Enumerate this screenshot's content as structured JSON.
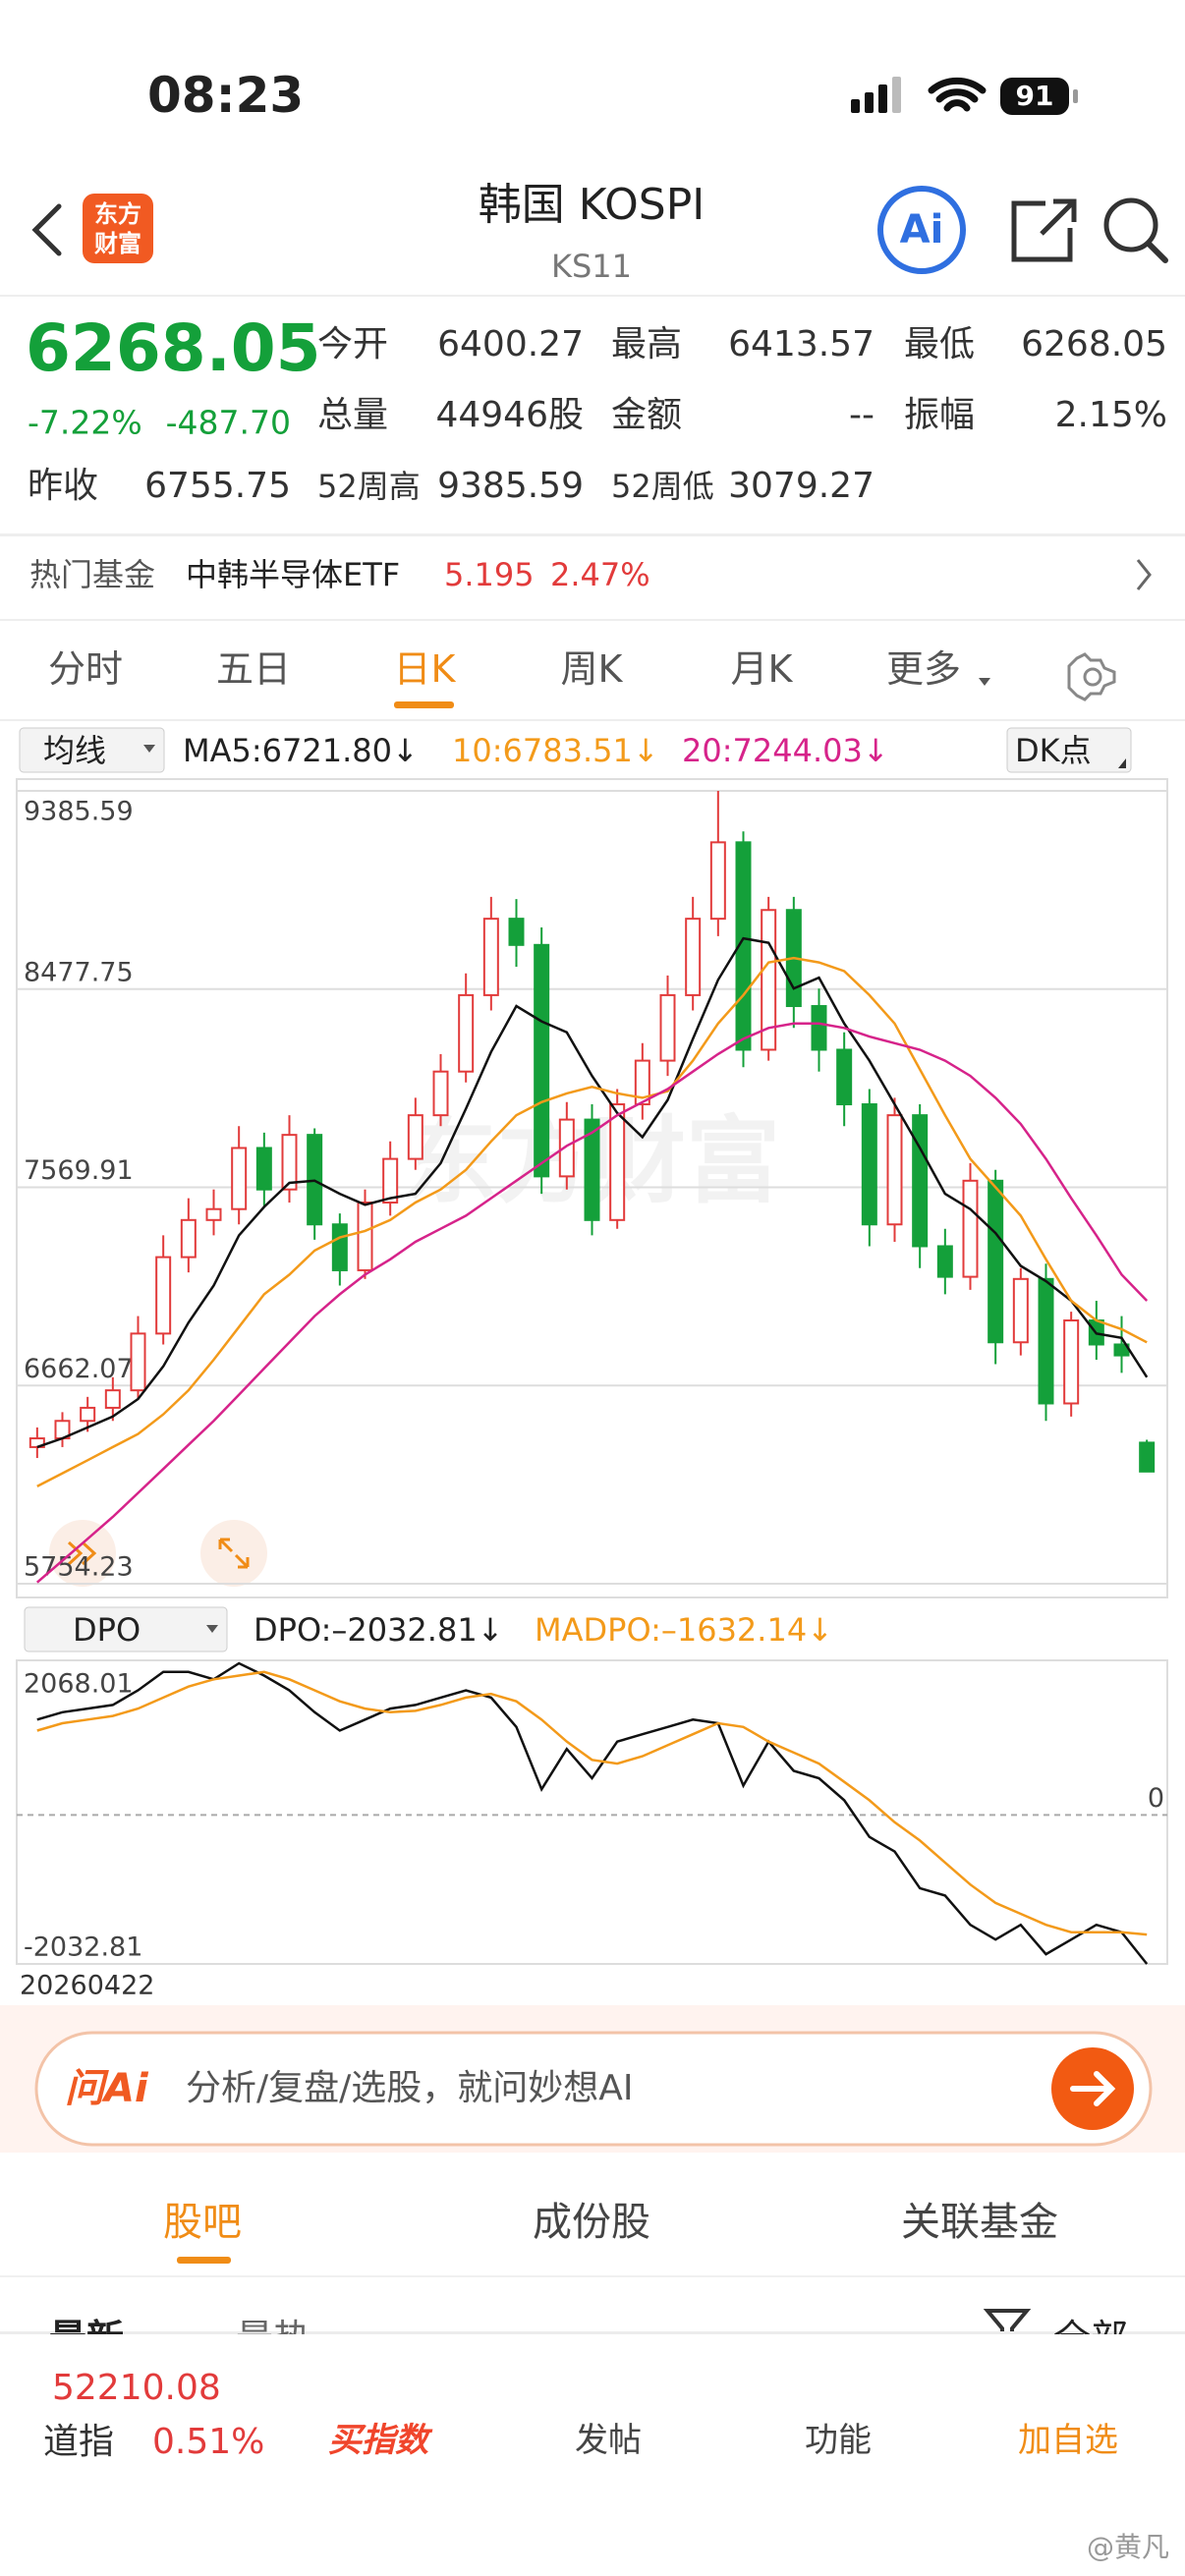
{
  "status": {
    "time": "08:23",
    "battery": "91"
  },
  "header": {
    "logo": [
      "东方",
      "财富"
    ],
    "title": "韩国 KOSPI",
    "code": "KS11",
    "ai": "Ai"
  },
  "quote": {
    "price": "6268.05",
    "change_pct": "-7.22%",
    "change": "-487.70",
    "stats": [
      [
        "今开",
        "6400.27"
      ],
      [
        "最高",
        "6413.57"
      ],
      [
        "最低",
        "6268.05"
      ],
      [
        "总量",
        "44946股"
      ],
      [
        "金额",
        "--"
      ],
      [
        "振幅",
        "2.15%"
      ],
      [
        "昨收",
        "6755.75"
      ],
      [
        "52周高",
        "9385.59"
      ],
      [
        "52周低",
        "3079.27"
      ]
    ]
  },
  "fund": {
    "label": "热门基金",
    "name": "中韩半导体ETF",
    "price": "5.195",
    "change": "2.47%"
  },
  "tabs": [
    "分时",
    "五日",
    "日K",
    "周K",
    "月K",
    "更多"
  ],
  "ma_selector": "均线",
  "dk": "DK点",
  "dpo_selector": "DPO",
  "watermark": "东方财富",
  "date": "20260422",
  "chart_data": [
    {
      "type": "candlestick",
      "ylim": [
        5754.23,
        9385.59
      ],
      "yticks": [
        5754.23,
        6662.07,
        7569.91,
        8477.75,
        9385.59
      ],
      "grid": true,
      "up_color": "#e23b3b",
      "down_color": "#14a03a",
      "open": [
        6380,
        6420,
        6500,
        6560,
        6640,
        6900,
        7250,
        7420,
        7470,
        7750,
        7560,
        7810,
        7400,
        7190,
        7500,
        7700,
        7900,
        8100,
        8450,
        8800,
        8680,
        7620,
        7880,
        7420,
        7950,
        8150,
        8450,
        8800,
        9150,
        8200,
        8840,
        8400,
        8200,
        7950,
        7400,
        7900,
        7300,
        7160,
        7600,
        6860,
        7150,
        6580,
        6960,
        6850,
        6400.27
      ],
      "high": [
        6470,
        6540,
        6610,
        6700,
        6980,
        7350,
        7520,
        7560,
        7850,
        7820,
        7900,
        7840,
        7450,
        7560,
        7780,
        7980,
        8180,
        8550,
        8900,
        8890,
        8760,
        7960,
        7950,
        8020,
        8230,
        8540,
        8900,
        9385.59,
        9200,
        8900,
        8900,
        8480,
        8280,
        8020,
        7980,
        7950,
        7380,
        7680,
        7650,
        7200,
        7220,
        7000,
        7050,
        6980,
        6413.57
      ],
      "low": [
        6330,
        6380,
        6450,
        6500,
        6600,
        6850,
        7180,
        7350,
        7400,
        7480,
        7500,
        7330,
        7120,
        7150,
        7440,
        7650,
        7850,
        8050,
        8380,
        8580,
        7540,
        7560,
        7350,
        7380,
        7880,
        8080,
        8380,
        8720,
        8120,
        8150,
        8300,
        8100,
        7850,
        7300,
        7320,
        7200,
        7080,
        7100,
        6760,
        6800,
        6500,
        6520,
        6780,
        6720,
        6268.05
      ],
      "close": [
        6420,
        6500,
        6560,
        6640,
        6900,
        7250,
        7420,
        7470,
        7750,
        7560,
        7810,
        7400,
        7190,
        7500,
        7700,
        7900,
        8100,
        8450,
        8800,
        8680,
        7620,
        7880,
        7420,
        7950,
        8150,
        8450,
        8800,
        9150,
        8200,
        8840,
        8400,
        8200,
        7950,
        7400,
        7900,
        7300,
        7160,
        7600,
        6860,
        7150,
        6580,
        6960,
        6850,
        6800,
        6268.05
      ],
      "series": [
        {
          "name": "MA5:6721.80↓",
          "color": "#111111",
          "values": [
            6380,
            6420,
            6470,
            6520,
            6600,
            6750,
            6950,
            7120,
            7350,
            7480,
            7590,
            7600,
            7540,
            7490,
            7520,
            7540,
            7680,
            7930,
            8190,
            8400,
            8330,
            8280,
            8080,
            7910,
            7800,
            7970,
            8250,
            8520,
            8710,
            8690,
            8480,
            8530,
            8320,
            8150,
            7950,
            7750,
            7540,
            7470,
            7360,
            7210,
            7140,
            7050,
            6900,
            6880,
            6700
          ]
        },
        {
          "name": "10:6783.51↓",
          "color": "#f39a1a",
          "values": [
            6200,
            6260,
            6320,
            6380,
            6440,
            6530,
            6640,
            6780,
            6930,
            7080,
            7170,
            7280,
            7340,
            7370,
            7420,
            7500,
            7560,
            7650,
            7780,
            7900,
            7960,
            8000,
            8030,
            8000,
            7980,
            8010,
            8150,
            8320,
            8450,
            8600,
            8620,
            8600,
            8560,
            8450,
            8320,
            8110,
            7900,
            7700,
            7570,
            7440,
            7240,
            7050,
            6960,
            6920,
            6860
          ]
        },
        {
          "name": "20:7244.03↓",
          "color": "#d6238a",
          "values": [
            5760,
            5860,
            5960,
            6060,
            6170,
            6280,
            6390,
            6500,
            6620,
            6740,
            6860,
            6980,
            7080,
            7170,
            7240,
            7320,
            7380,
            7440,
            7520,
            7600,
            7680,
            7760,
            7820,
            7900,
            7960,
            8020,
            8100,
            8180,
            8250,
            8300,
            8320,
            8320,
            8300,
            8260,
            8230,
            8200,
            8150,
            8080,
            7980,
            7860,
            7700,
            7520,
            7350,
            7170,
            7050
          ]
        }
      ]
    },
    {
      "type": "line",
      "ylim": [
        -2032.81,
        2068.01
      ],
      "yticks": [
        -2032.81,
        0,
        2068.01
      ],
      "series": [
        {
          "name": "DPO:–2032.81↓",
          "color": "#111111",
          "values": [
            1300,
            1400,
            1450,
            1500,
            1700,
            1950,
            1950,
            1850,
            2068.01,
            1900,
            1700,
            1400,
            1150,
            1300,
            1450,
            1500,
            1600,
            1700,
            1600,
            1200,
            350,
            900,
            500,
            1000,
            1100,
            1200,
            1300,
            1250,
            400,
            1000,
            600,
            500,
            200,
            -300,
            -500,
            -1000,
            -1100,
            -1500,
            -1700,
            -1500,
            -1900,
            -1700,
            -1500,
            -1600,
            -2032.81
          ]
        },
        {
          "name": "MADPO:–1632.14↓",
          "color": "#f39a1a",
          "values": [
            1150,
            1250,
            1300,
            1350,
            1450,
            1600,
            1750,
            1850,
            1900,
            1950,
            1850,
            1700,
            1550,
            1450,
            1400,
            1420,
            1500,
            1600,
            1650,
            1550,
            1300,
            1000,
            750,
            700,
            800,
            950,
            1100,
            1250,
            1200,
            1000,
            850,
            700,
            450,
            200,
            -100,
            -350,
            -650,
            -950,
            -1200,
            -1350,
            -1500,
            -1600,
            -1600,
            -1600,
            -1632.14
          ]
        }
      ]
    }
  ],
  "ask": {
    "brand": "问Ai",
    "placeholder": "分析/复盘/选股，就问妙想AI"
  },
  "sections": [
    "股吧",
    "成份股",
    "关联基金"
  ],
  "filters": [
    "最新",
    "最热",
    "全部"
  ],
  "bottom": {
    "index_value": "52210.08",
    "index_name": "道指",
    "index_change": "0.51%",
    "items": [
      "买指数",
      "发帖",
      "功能",
      "加自选"
    ]
  },
  "credit": "@黄凡"
}
